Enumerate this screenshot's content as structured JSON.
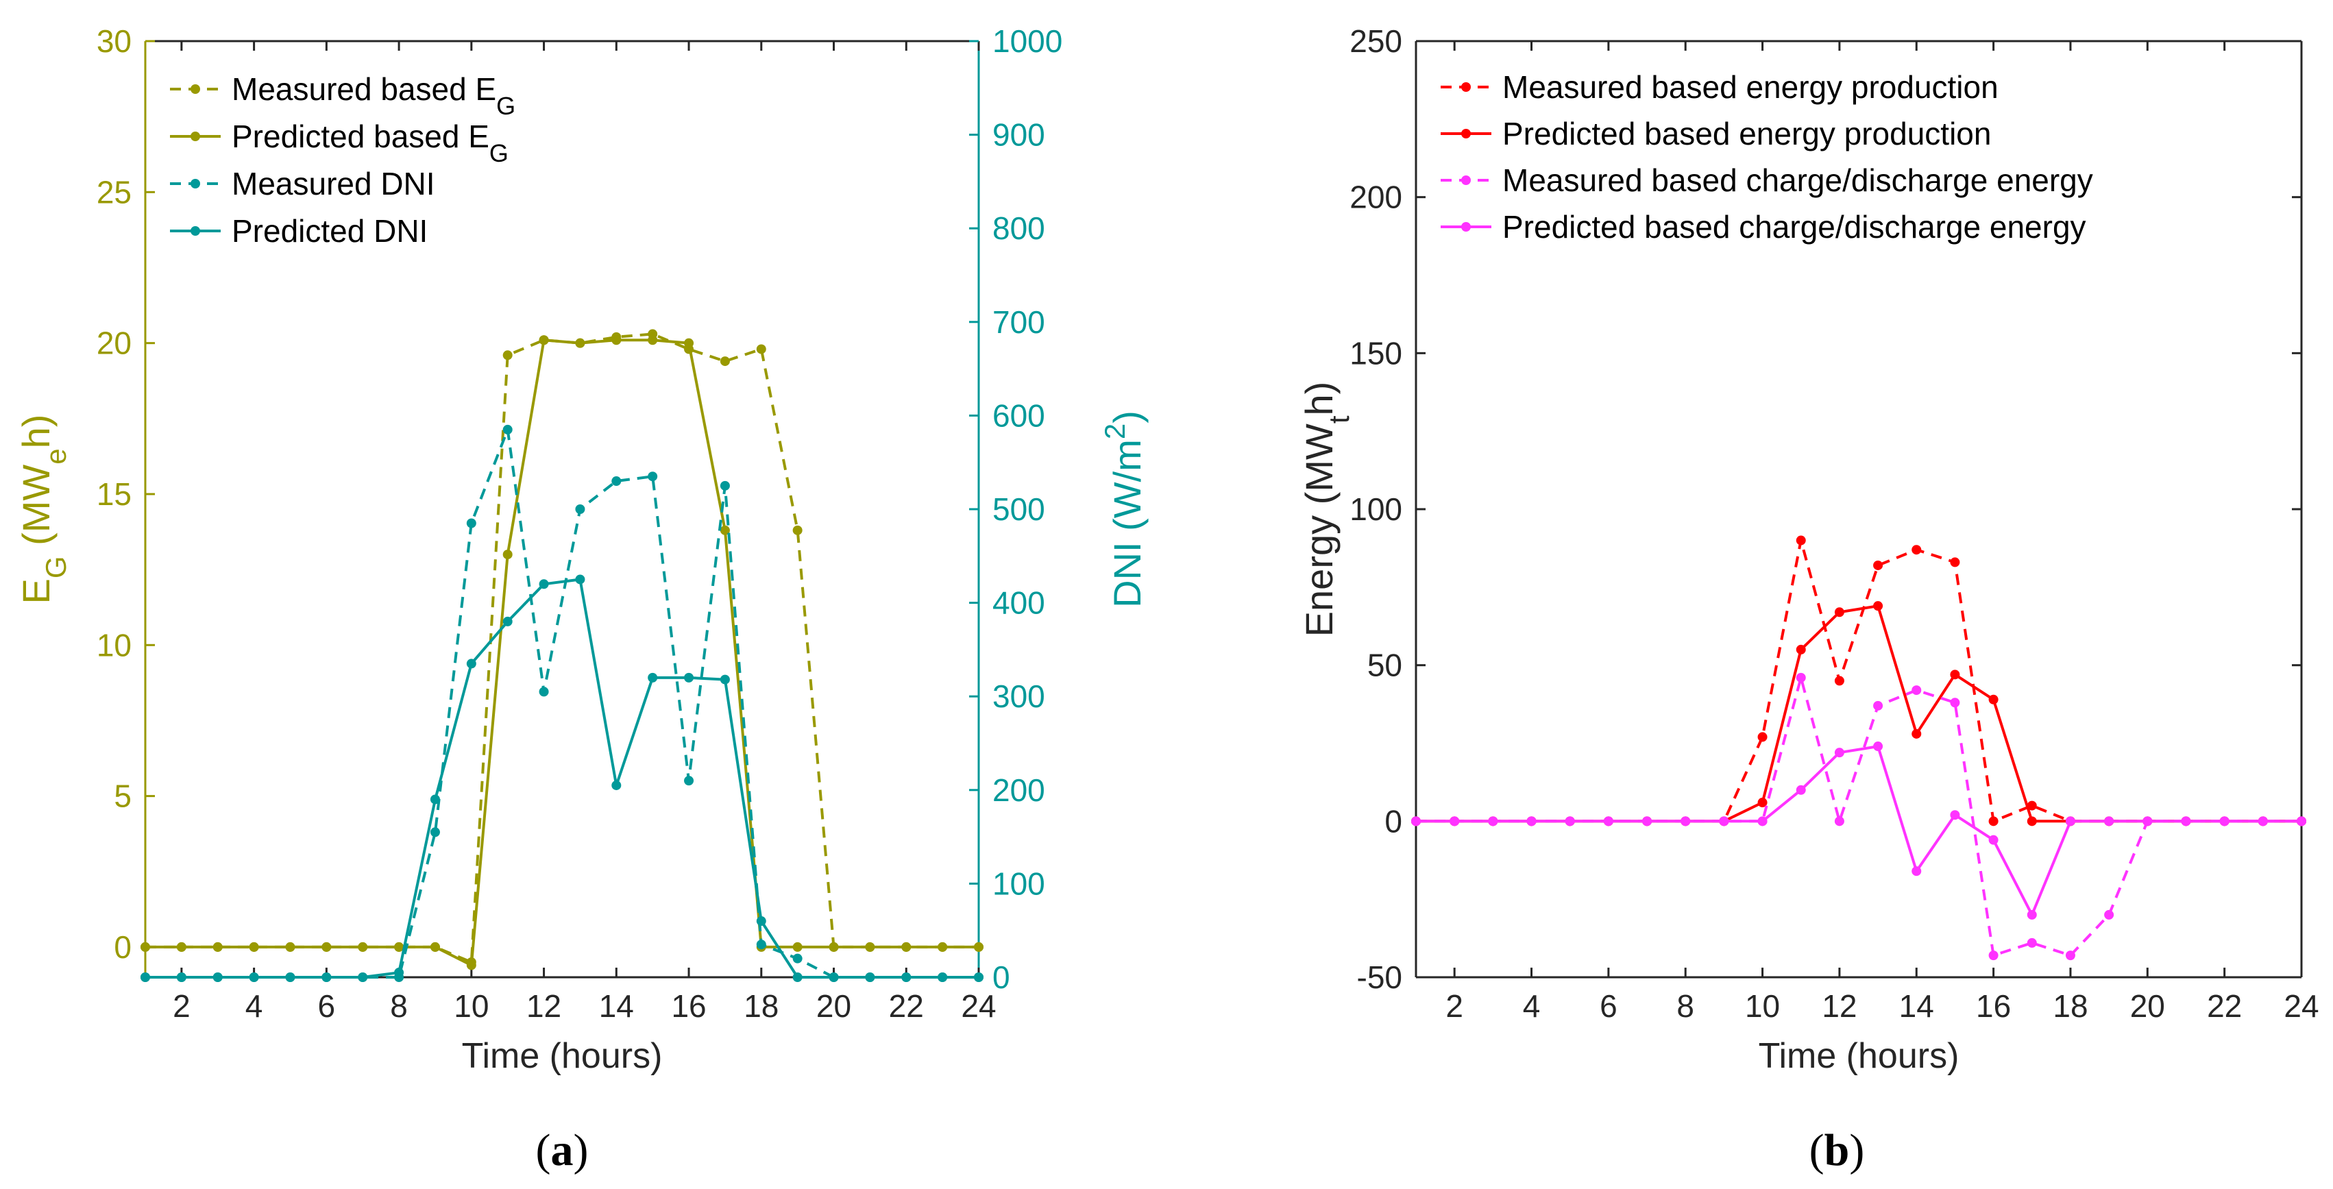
{
  "chart_data": [
    {
      "panel_label": "(a)",
      "type": "line",
      "xlabel": "Time (hours)",
      "xlim": [
        1,
        24
      ],
      "xticks": [
        2,
        4,
        6,
        8,
        10,
        12,
        14,
        16,
        18,
        20,
        22,
        24
      ],
      "x": [
        1,
        2,
        3,
        4,
        5,
        6,
        7,
        8,
        9,
        10,
        11,
        12,
        13,
        14,
        15,
        16,
        17,
        18,
        19,
        20,
        21,
        22,
        23,
        24
      ],
      "ylabel_left": {
        "base": "E",
        "sub": "G",
        "rest": " (MW",
        "sub2": "e",
        "tail": "h)"
      },
      "ylabel_right": {
        "base": "DNI (W/m",
        "sup": "2",
        "tail": ")"
      },
      "ylim_left": [
        -1,
        30
      ],
      "yticks_left": [
        0,
        5,
        10,
        15,
        20,
        25,
        30
      ],
      "ylim_right": [
        0,
        1000
      ],
      "yticks_right": [
        0,
        100,
        200,
        300,
        400,
        500,
        600,
        700,
        800,
        900,
        1000
      ],
      "left_axis_color": "#999900",
      "right_axis_color": "#009999",
      "legend_position": "top-left",
      "series": [
        {
          "name": "Measured based E",
          "name_sub": "G",
          "axis": "left",
          "style": "dashed",
          "color": "#999900",
          "values": [
            0,
            0,
            0,
            0,
            0,
            0,
            0,
            0,
            0,
            -0.5,
            19.6,
            20.1,
            20.0,
            20.2,
            20.3,
            19.8,
            19.4,
            19.8,
            13.8,
            0,
            0,
            0,
            0,
            0
          ]
        },
        {
          "name": "Predicted based E",
          "name_sub": "G",
          "axis": "left",
          "style": "solid",
          "color": "#999900",
          "values": [
            0,
            0,
            0,
            0,
            0,
            0,
            0,
            0,
            0,
            -0.6,
            13.0,
            20.1,
            20.0,
            20.1,
            20.1,
            20.0,
            13.8,
            0,
            0,
            0,
            0,
            0,
            0,
            0
          ]
        },
        {
          "name": "Measured DNI",
          "axis": "right",
          "style": "dashed",
          "color": "#009999",
          "values": [
            0,
            0,
            0,
            0,
            0,
            0,
            0,
            0,
            155,
            485,
            585,
            305,
            500,
            530,
            535,
            210,
            525,
            35,
            20,
            0,
            0,
            0,
            0,
            0
          ]
        },
        {
          "name": "Predicted DNI",
          "axis": "right",
          "style": "solid",
          "color": "#009999",
          "values": [
            0,
            0,
            0,
            0,
            0,
            0,
            0,
            5,
            190,
            335,
            380,
            420,
            425,
            205,
            320,
            320,
            318,
            60,
            0,
            0,
            0,
            0,
            0,
            0
          ]
        }
      ]
    },
    {
      "panel_label": "(b)",
      "type": "line",
      "xlabel": "Time (hours)",
      "xlim": [
        1,
        24
      ],
      "xticks": [
        2,
        4,
        6,
        8,
        10,
        12,
        14,
        16,
        18,
        20,
        22,
        24
      ],
      "x": [
        1,
        2,
        3,
        4,
        5,
        6,
        7,
        8,
        9,
        10,
        11,
        12,
        13,
        14,
        15,
        16,
        17,
        18,
        19,
        20,
        21,
        22,
        23,
        24
      ],
      "ylabel": {
        "base": "Energy (MW",
        "sub": "t",
        "tail": "h)"
      },
      "ylim": [
        -50,
        250
      ],
      "yticks": [
        -50,
        0,
        50,
        100,
        150,
        200,
        250
      ],
      "legend_position": "top-left",
      "series": [
        {
          "name": "Measured based energy production",
          "style": "dashed",
          "color": "#ff0000",
          "values": [
            0,
            0,
            0,
            0,
            0,
            0,
            0,
            0,
            0,
            27,
            90,
            45,
            82,
            87,
            83,
            0,
            5,
            0,
            0,
            0,
            0,
            0,
            0,
            0
          ]
        },
        {
          "name": "Predicted based energy production",
          "style": "solid",
          "color": "#ff0000",
          "values": [
            0,
            0,
            0,
            0,
            0,
            0,
            0,
            0,
            0,
            6,
            55,
            67,
            69,
            28,
            47,
            39,
            0,
            0,
            0,
            0,
            0,
            0,
            0,
            0
          ]
        },
        {
          "name": "Measured based charge/discharge energy",
          "style": "dashed",
          "color": "#ff33ff",
          "values": [
            0,
            0,
            0,
            0,
            0,
            0,
            0,
            0,
            0,
            0,
            46,
            0,
            37,
            42,
            38,
            -43,
            -39,
            -43,
            -30,
            0,
            0,
            0,
            0,
            0
          ]
        },
        {
          "name": "Predicted based charge/discharge energy",
          "style": "solid",
          "color": "#ff33ff",
          "values": [
            0,
            0,
            0,
            0,
            0,
            0,
            0,
            0,
            0,
            0,
            10,
            22,
            24,
            -16,
            2,
            -6,
            -30,
            0,
            0,
            0,
            0,
            0,
            0,
            0
          ]
        }
      ]
    }
  ]
}
